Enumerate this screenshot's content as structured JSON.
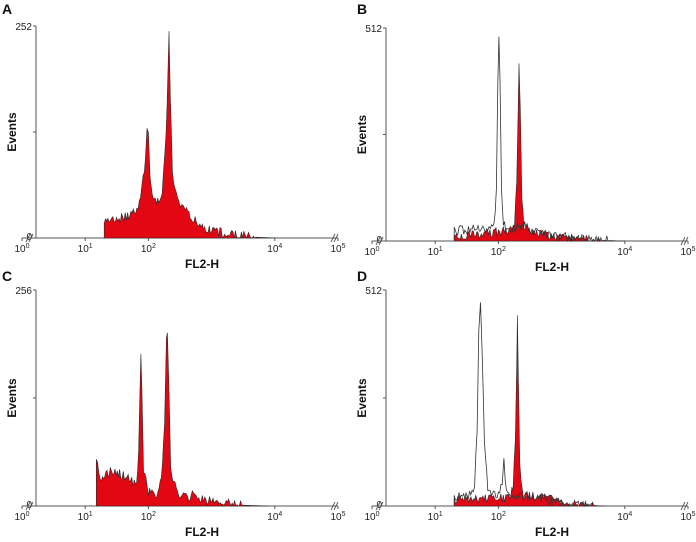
{
  "chart_data": [
    {
      "type": "area",
      "panel": "A",
      "xlabel": "FL2-H",
      "ylabel": "Events",
      "xscale": "log",
      "xlim": [
        1,
        100000
      ],
      "ylim": [
        0,
        252
      ],
      "ymax_label": "252",
      "ymin_label": "0",
      "x_ticks": [
        {
          "base": "10",
          "exp": "0"
        },
        {
          "base": "10",
          "exp": "1"
        },
        {
          "base": "10",
          "exp": "2"
        },
        {
          "base": "10",
          "exp": "4"
        },
        {
          "base": "10",
          "exp": "5"
        }
      ],
      "tick_values": [
        1,
        10,
        100,
        10000,
        100000
      ],
      "series": [
        {
          "name": "filled",
          "style": "filled-red",
          "points": [
            [
              20,
              20
            ],
            [
              30,
              22
            ],
            [
              45,
              26
            ],
            [
              60,
              30
            ],
            [
              75,
              45
            ],
            [
              90,
              95
            ],
            [
              95,
              135
            ],
            [
              100,
              125
            ],
            [
              106,
              78
            ],
            [
              115,
              52
            ],
            [
              135,
              42
            ],
            [
              165,
              52
            ],
            [
              190,
              118
            ],
            [
              205,
              200
            ],
            [
              212,
              248
            ],
            [
              222,
              172
            ],
            [
              240,
              75
            ],
            [
              290,
              42
            ],
            [
              400,
              32
            ],
            [
              600,
              18
            ],
            [
              1000,
              9
            ],
            [
              2000,
              4
            ],
            [
              5000,
              1
            ],
            [
              10000,
              0
            ]
          ]
        }
      ]
    },
    {
      "type": "area",
      "panel": "B",
      "xlabel": "FL2-H",
      "ylabel": "Events",
      "xscale": "log",
      "xlim": [
        1,
        100000
      ],
      "ylim": [
        0,
        512
      ],
      "ymax_label": "512",
      "ymin_label": "0",
      "x_ticks": [
        {
          "base": "10",
          "exp": "0"
        },
        {
          "base": "10",
          "exp": "1"
        },
        {
          "base": "10",
          "exp": "2"
        },
        {
          "base": "10",
          "exp": "4"
        },
        {
          "base": "10",
          "exp": "5"
        }
      ],
      "tick_values": [
        1,
        10,
        100,
        10000,
        100000
      ],
      "series": [
        {
          "name": "filled",
          "style": "filled-red",
          "points": [
            [
              20,
              10
            ],
            [
              40,
              15
            ],
            [
              80,
              20
            ],
            [
              150,
              26
            ],
            [
              180,
              40
            ],
            [
              195,
              140
            ],
            [
              205,
              300
            ],
            [
              212,
              438
            ],
            [
              222,
              320
            ],
            [
              235,
              95
            ],
            [
              255,
              32
            ],
            [
              350,
              22
            ],
            [
              600,
              14
            ],
            [
              1500,
              5
            ],
            [
              4000,
              1
            ],
            [
              10000,
              0
            ]
          ]
        },
        {
          "name": "outline",
          "style": "outline",
          "points": [
            [
              20,
              25
            ],
            [
              40,
              28
            ],
            [
              65,
              30
            ],
            [
              85,
              36
            ],
            [
              93,
              120
            ],
            [
              98,
              380
            ],
            [
              102,
              488
            ],
            [
              106,
              380
            ],
            [
              112,
              120
            ],
            [
              120,
              38
            ],
            [
              160,
              30
            ],
            [
              240,
              35
            ],
            [
              270,
              42
            ],
            [
              300,
              28
            ],
            [
              600,
              15
            ],
            [
              2000,
              4
            ],
            [
              8000,
              0
            ]
          ]
        }
      ]
    },
    {
      "type": "area",
      "panel": "C",
      "xlabel": "FL2-H",
      "ylabel": "Events",
      "xscale": "log",
      "xlim": [
        1,
        100000
      ],
      "ylim": [
        0,
        256
      ],
      "ymax_label": "256",
      "ymin_label": "0",
      "x_ticks": [
        {
          "base": "10",
          "exp": "0"
        },
        {
          "base": "10",
          "exp": "1"
        },
        {
          "base": "10",
          "exp": "2"
        },
        {
          "base": "10",
          "exp": "4"
        },
        {
          "base": "10",
          "exp": "5"
        }
      ],
      "tick_values": [
        1,
        10,
        100,
        10000,
        100000
      ],
      "series": [
        {
          "name": "filled",
          "style": "filled-red",
          "points": [
            [
              15,
              52
            ],
            [
              18,
              30
            ],
            [
              25,
              42
            ],
            [
              35,
              38
            ],
            [
              50,
              32
            ],
            [
              65,
              24
            ],
            [
              70,
              60
            ],
            [
              73,
              130
            ],
            [
              76,
              182
            ],
            [
              79,
              140
            ],
            [
              84,
              40
            ],
            [
              100,
              18
            ],
            [
              130,
              12
            ],
            [
              160,
              30
            ],
            [
              180,
              100
            ],
            [
              193,
              196
            ],
            [
              200,
              210
            ],
            [
              210,
              150
            ],
            [
              225,
              40
            ],
            [
              300,
              14
            ],
            [
              450,
              10
            ],
            [
              520,
              18
            ],
            [
              600,
              8
            ],
            [
              1200,
              4
            ],
            [
              3000,
              1
            ],
            [
              8000,
              0
            ]
          ]
        }
      ]
    },
    {
      "type": "area",
      "panel": "D",
      "xlabel": "FL2-H",
      "ylabel": "Events",
      "xscale": "log",
      "xlim": [
        1,
        100000
      ],
      "ylim": [
        0,
        512
      ],
      "ymax_label": "512",
      "ymin_label": "0",
      "x_ticks": [
        {
          "base": "10",
          "exp": "0"
        },
        {
          "base": "10",
          "exp": "1"
        },
        {
          "base": "10",
          "exp": "2"
        },
        {
          "base": "10",
          "exp": "4"
        },
        {
          "base": "10",
          "exp": "5"
        }
      ],
      "tick_values": [
        1,
        10,
        100,
        10000,
        100000
      ],
      "series": [
        {
          "name": "filled",
          "style": "filled-red",
          "points": [
            [
              20,
              12
            ],
            [
              50,
              16
            ],
            [
              100,
              18
            ],
            [
              150,
              22
            ],
            [
              170,
              40
            ],
            [
              185,
              150
            ],
            [
              195,
              330
            ],
            [
              200,
              455
            ],
            [
              206,
              330
            ],
            [
              218,
              90
            ],
            [
              240,
              28
            ],
            [
              400,
              22
            ],
            [
              700,
              16
            ],
            [
              900,
              8
            ],
            [
              2000,
              2
            ],
            [
              5000,
              0
            ]
          ]
        },
        {
          "name": "outline",
          "style": "outline",
          "points": [
            [
              20,
              22
            ],
            [
              35,
              25
            ],
            [
              42,
              40
            ],
            [
              46,
              180
            ],
            [
              49,
              420
            ],
            [
              52,
              472
            ],
            [
              55,
              380
            ],
            [
              60,
              150
            ],
            [
              68,
              40
            ],
            [
              80,
              25
            ],
            [
              100,
              28
            ],
            [
              115,
              60
            ],
            [
              122,
              118
            ],
            [
              128,
              70
            ],
            [
              140,
              28
            ],
            [
              200,
              24
            ],
            [
              400,
              20
            ],
            [
              1000,
              6
            ],
            [
              4000,
              0
            ]
          ]
        }
      ]
    }
  ]
}
